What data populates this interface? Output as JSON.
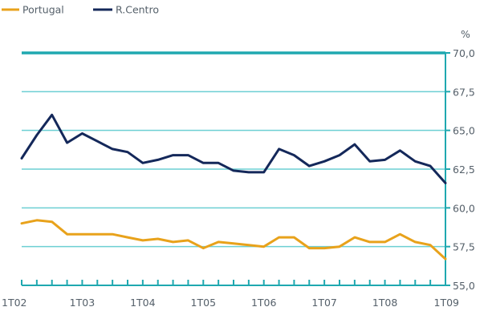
{
  "chart_data": {
    "type": "line",
    "unit": "%",
    "x_tick_labels": [
      "1T02",
      "1T03",
      "1T04",
      "1T05",
      "1T06",
      "1T07",
      "1T08",
      "1T09"
    ],
    "x": [
      "1T02",
      "2T02",
      "3T02",
      "4T02",
      "1T03",
      "2T03",
      "3T03",
      "4T03",
      "1T04",
      "2T04",
      "3T04",
      "4T04",
      "1T05",
      "2T05",
      "3T05",
      "4T05",
      "1T06",
      "2T06",
      "3T06",
      "4T06",
      "1T07",
      "2T07",
      "3T07",
      "4T07",
      "1T08",
      "2T08",
      "3T08",
      "4T08",
      "1T09"
    ],
    "ylim": [
      55.0,
      70.0
    ],
    "y_ticks": [
      "55,0",
      "57,5",
      "60,0",
      "62,5",
      "65,0",
      "67,5",
      "70,0"
    ],
    "y_tick_values": [
      55.0,
      57.5,
      60.0,
      62.5,
      65.0,
      67.5,
      70.0
    ],
    "grid": "horizontal",
    "legend_position": "top-left",
    "series": [
      {
        "name": "Portugal",
        "color": "#e8a21b",
        "values": [
          59.0,
          59.2,
          59.1,
          58.3,
          58.3,
          58.3,
          58.3,
          58.1,
          57.9,
          58.0,
          57.8,
          57.9,
          57.4,
          57.8,
          57.7,
          57.6,
          57.5,
          58.1,
          58.1,
          57.4,
          57.4,
          57.5,
          58.1,
          57.8,
          57.8,
          58.3,
          57.8,
          57.6,
          56.7
        ]
      },
      {
        "name": "R.Centro",
        "color": "#14285a",
        "values": [
          63.2,
          64.7,
          66.0,
          64.2,
          64.8,
          64.3,
          63.8,
          63.6,
          62.9,
          63.1,
          63.4,
          63.4,
          62.9,
          62.9,
          62.4,
          62.3,
          62.3,
          63.8,
          63.4,
          62.7,
          63.0,
          63.4,
          64.1,
          63.0,
          63.1,
          63.7,
          63.0,
          62.7,
          61.6
        ]
      }
    ]
  }
}
